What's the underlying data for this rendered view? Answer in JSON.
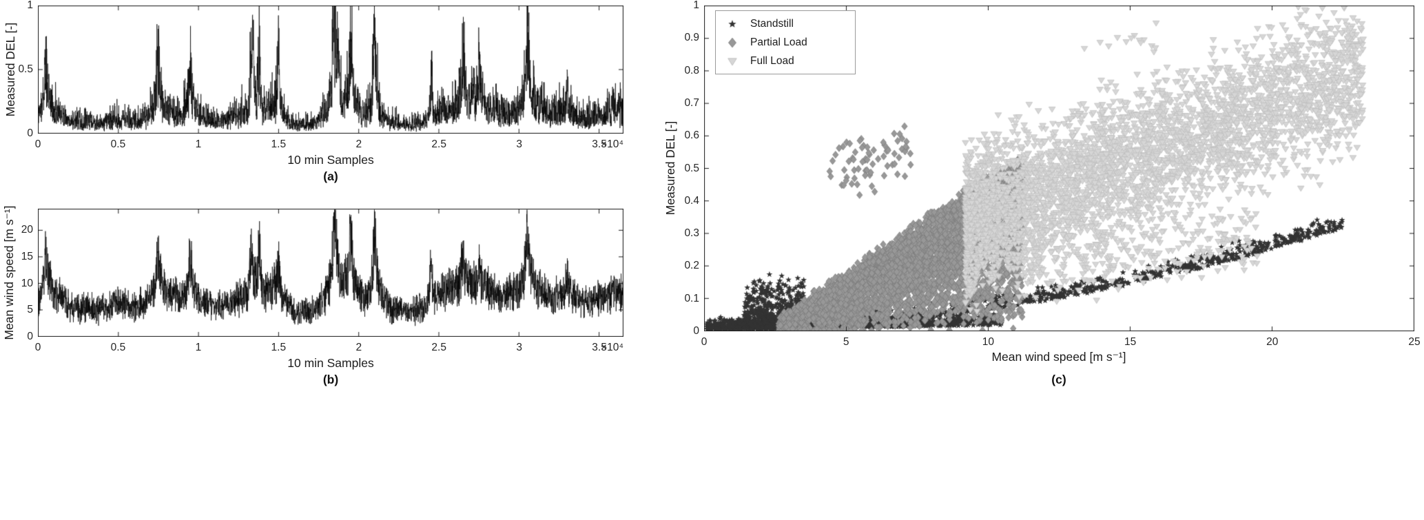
{
  "figure": {
    "background": "#ffffff",
    "axes_color": "#1a1a1a",
    "text_color": "#1c1c1c"
  },
  "chart_data": [
    {
      "id": "a",
      "type": "line",
      "panel_caption": "(a)",
      "xlabel": "10 min Samples",
      "ylabel": "Measured DEL [-]",
      "x_exponent_label": "×10⁴",
      "xlim": [
        0,
        36500
      ],
      "ylim": [
        0,
        1
      ],
      "xticks": [
        {
          "v": 0,
          "label": "0"
        },
        {
          "v": 5000,
          "label": "0.5"
        },
        {
          "v": 10000,
          "label": "1"
        },
        {
          "v": 15000,
          "label": "1.5"
        },
        {
          "v": 20000,
          "label": "2"
        },
        {
          "v": 25000,
          "label": "2.5"
        },
        {
          "v": 30000,
          "label": "3"
        },
        {
          "v": 35000,
          "label": "3.5"
        }
      ],
      "yticks": [
        {
          "v": 0,
          "label": "0"
        },
        {
          "v": 0.5,
          "label": "0.5"
        },
        {
          "v": 1,
          "label": "1"
        }
      ],
      "line_color": "#000000",
      "line_width": 0.7,
      "n_points": 3650,
      "seed": 101,
      "del_transform": {
        "offset": 2.0,
        "scale": 20.5,
        "power": 1.55
      },
      "del_spikes": [
        [
          13400,
          0.95,
          100
        ],
        [
          15000,
          0.92,
          90
        ],
        [
          18700,
          1.0,
          130
        ],
        [
          21000,
          0.85,
          110
        ],
        [
          30500,
          0.8,
          120
        ]
      ]
    },
    {
      "id": "b",
      "type": "line",
      "panel_caption": "(b)",
      "xlabel": "10 min Samples",
      "ylabel": "Mean wind speed [m s⁻¹]",
      "x_exponent_label": "×10⁴",
      "xlim": [
        0,
        36500
      ],
      "ylim": [
        0,
        24
      ],
      "xticks": [
        {
          "v": 0,
          "label": "0"
        },
        {
          "v": 5000,
          "label": "0.5"
        },
        {
          "v": 10000,
          "label": "1"
        },
        {
          "v": 15000,
          "label": "1.5"
        },
        {
          "v": 20000,
          "label": "2"
        },
        {
          "v": 25000,
          "label": "2.5"
        },
        {
          "v": 30000,
          "label": "3"
        },
        {
          "v": 35000,
          "label": "3.5"
        }
      ],
      "yticks": [
        {
          "v": 0,
          "label": "0"
        },
        {
          "v": 5,
          "label": "5"
        },
        {
          "v": 10,
          "label": "10"
        },
        {
          "v": 15,
          "label": "15"
        },
        {
          "v": 20,
          "label": "20"
        }
      ],
      "line_color": "#000000",
      "line_width": 0.7,
      "n_points": 3650,
      "seed": 77,
      "envelope": [
        [
          0,
          7
        ],
        [
          500,
          13
        ],
        [
          1000,
          9
        ],
        [
          1500,
          8
        ],
        [
          2000,
          6
        ],
        [
          3000,
          6
        ],
        [
          4000,
          5.5
        ],
        [
          5000,
          7
        ],
        [
          6000,
          6
        ],
        [
          7000,
          8
        ],
        [
          7500,
          12
        ],
        [
          8000,
          9
        ],
        [
          9000,
          8
        ],
        [
          9500,
          12
        ],
        [
          10000,
          8
        ],
        [
          11000,
          6
        ],
        [
          12000,
          7
        ],
        [
          13000,
          9
        ],
        [
          13500,
          12
        ],
        [
          14000,
          9
        ],
        [
          15000,
          11
        ],
        [
          15500,
          7
        ],
        [
          16000,
          5
        ],
        [
          17000,
          5
        ],
        [
          18000,
          9
        ],
        [
          18500,
          16
        ],
        [
          19000,
          11
        ],
        [
          19500,
          13
        ],
        [
          20000,
          9
        ],
        [
          20500,
          8
        ],
        [
          21000,
          13
        ],
        [
          21500,
          8
        ],
        [
          22000,
          6
        ],
        [
          23000,
          5
        ],
        [
          24000,
          6
        ],
        [
          25000,
          9
        ],
        [
          26000,
          10
        ],
        [
          26500,
          12
        ],
        [
          27000,
          11
        ],
        [
          28000,
          10
        ],
        [
          29000,
          8
        ],
        [
          30000,
          10
        ],
        [
          30500,
          14
        ],
        [
          31000,
          11
        ],
        [
          31500,
          9
        ],
        [
          32000,
          8
        ],
        [
          33000,
          9
        ],
        [
          34000,
          7
        ],
        [
          35000,
          8
        ],
        [
          36000,
          9
        ],
        [
          36500,
          9
        ]
      ],
      "spikes": [
        [
          500,
          17,
          130
        ],
        [
          7500,
          16,
          120
        ],
        [
          9500,
          16,
          120
        ],
        [
          13300,
          17,
          110
        ],
        [
          13800,
          18,
          110
        ],
        [
          15000,
          15,
          110
        ],
        [
          18500,
          23.5,
          140
        ],
        [
          19500,
          20,
          120
        ],
        [
          21000,
          20,
          130
        ],
        [
          24500,
          14,
          110
        ],
        [
          26500,
          16,
          130
        ],
        [
          27500,
          15,
          120
        ],
        [
          30500,
          21,
          140
        ],
        [
          33000,
          13,
          120
        ]
      ]
    },
    {
      "id": "c",
      "type": "scatter",
      "panel_caption": "(c)",
      "xlabel": "Mean wind speed [m s⁻¹]",
      "ylabel": "Measured DEL [-]",
      "xlim": [
        0,
        25
      ],
      "ylim": [
        0,
        1
      ],
      "xticks": [
        {
          "v": 0,
          "label": "0"
        },
        {
          "v": 5,
          "label": "5"
        },
        {
          "v": 10,
          "label": "10"
        },
        {
          "v": 15,
          "label": "15"
        },
        {
          "v": 20,
          "label": "20"
        },
        {
          "v": 25,
          "label": "25"
        }
      ],
      "yticks": [
        {
          "v": 0,
          "label": "0"
        },
        {
          "v": 0.1,
          "label": "0.1"
        },
        {
          "v": 0.2,
          "label": "0.2"
        },
        {
          "v": 0.3,
          "label": "0.3"
        },
        {
          "v": 0.4,
          "label": "0.4"
        },
        {
          "v": 0.5,
          "label": "0.5"
        },
        {
          "v": 0.6,
          "label": "0.6"
        },
        {
          "v": 0.7,
          "label": "0.7"
        },
        {
          "v": 0.8,
          "label": "0.8"
        },
        {
          "v": 0.9,
          "label": "0.9"
        },
        {
          "v": 1,
          "label": "1"
        }
      ],
      "seed": 202,
      "legend": {
        "position": "northwest",
        "entries": [
          {
            "label": "Standstill",
            "marker": "star",
            "color": "#333333"
          },
          {
            "label": "Partial Load",
            "marker": "diamond",
            "color": "#989898"
          },
          {
            "label": "Full Load",
            "marker": "triangle-down",
            "color": "#d6d6d6"
          }
        ]
      },
      "series": [
        {
          "name": "Standstill",
          "marker": "star",
          "color": "#333333",
          "edge": "#222222",
          "clusters": [
            {
              "type": "hband",
              "n": 1100,
              "w": [
                0.1,
                10.5
              ],
              "wexp": 1.2,
              "d0": 0.004,
              "dslope": 0.0015,
              "noise": 0.014
            },
            {
              "type": "hband",
              "n": 500,
              "w": [
                1.4,
                3.6
              ],
              "wexp": 1.0,
              "d0": 0.01,
              "dslope": 0,
              "noise": 0.065
            },
            {
              "type": "hband",
              "n": 800,
              "w": [
                1.5,
                22.5
              ],
              "wexp": 0.85,
              "d0": 0.004,
              "dslope": 0,
              "dquad": 0.00062,
              "noise": 0.02
            }
          ]
        },
        {
          "name": "Partial Load",
          "marker": "diamond",
          "color": "#989898",
          "edge": "#7a7a7a",
          "clusters": [
            {
              "type": "fill",
              "n": 4300,
              "w": [
                2.6,
                11.2
              ],
              "wexp": 0.78,
              "dmax0": 0.025,
              "dmaxSlope": 0.06,
              "fillexp": 0.55,
              "noise": 0.012
            },
            {
              "type": "band",
              "n": 70,
              "w": [
                4.4,
                7.3
              ],
              "wexp": 1,
              "d0": 0.5,
              "dslope": 0.015,
              "noise": 0.045
            }
          ]
        },
        {
          "name": "Full Load",
          "marker": "triangle-down",
          "color": "#d6d6d6",
          "edge": "#bdbdbd",
          "clusters": [
            {
              "type": "band",
              "n": 3900,
              "w": [
                9.2,
                23.2
              ],
              "wexp": 1.45,
              "d0": 0.33,
              "dslope": 0.033,
              "noise": 0.105
            },
            {
              "type": "band",
              "n": 260,
              "w": [
                11,
                19.5
              ],
              "wexp": 1,
              "d0": 0.19,
              "dslope": 0.012,
              "noise": 0.05
            },
            {
              "type": "band",
              "n": 14,
              "w": [
                12.5,
                16
              ],
              "wexp": 1,
              "d0": 0.9,
              "dslope": 0,
              "noise": 0.035
            }
          ]
        }
      ]
    }
  ]
}
